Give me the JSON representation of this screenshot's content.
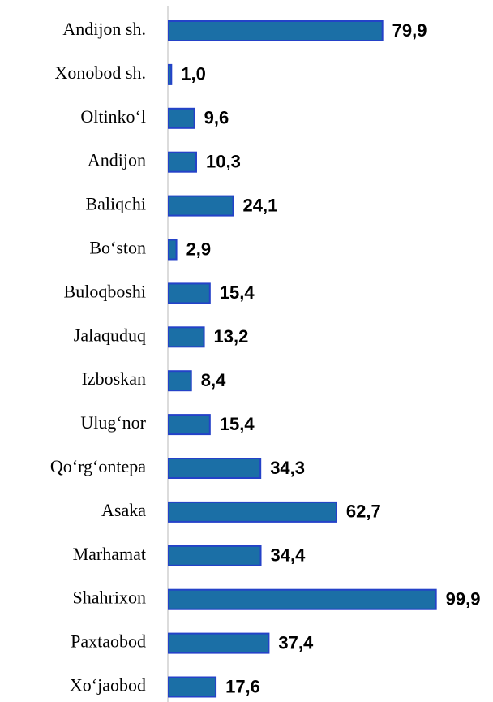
{
  "chart_data": {
    "type": "barh",
    "categories": [
      "Andijon sh.",
      "Xonobod sh.",
      "Oltinko‘l",
      "Andijon",
      "Baliqchi",
      "Bo‘ston",
      "Buloqboshi",
      "Jalaquduq",
      "Izboskan",
      "Ulug‘nor",
      "Qo‘rg‘ontepa",
      "Asaka",
      "Marhamat",
      "Shahrixon",
      "Paxtaobod",
      "Xo‘jaobod"
    ],
    "values": [
      79.9,
      1.0,
      9.6,
      10.3,
      24.1,
      2.9,
      15.4,
      13.2,
      8.4,
      15.4,
      34.3,
      62.7,
      34.4,
      99.9,
      37.4,
      17.6
    ],
    "value_labels": [
      "79,9",
      "1,0",
      "9,6",
      "10,3",
      "24,1",
      "2,9",
      "15,4",
      "13,2",
      "8,4",
      "15,4",
      "34,3",
      "62,7",
      "34,4",
      "99,9",
      "37,4",
      "17,6"
    ],
    "color": "#1b6fa6",
    "xlim": [
      0,
      100
    ]
  }
}
